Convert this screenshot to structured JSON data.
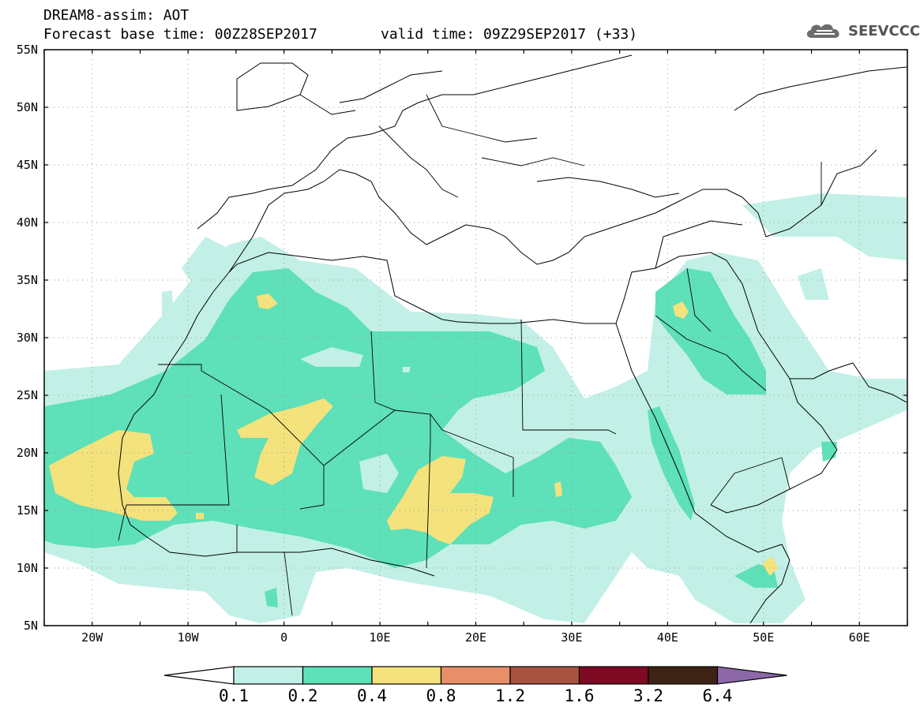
{
  "header": {
    "title": "DREAM8-assim: AOT",
    "base_time": "Forecast base time: 00Z28SEP2017",
    "valid_time": "valid time: 09Z29SEP2017 (+33)",
    "logo_text": "SEEVCCC"
  },
  "map": {
    "projection": "lat-lon",
    "lon_range": [
      -25,
      65
    ],
    "lat_range": [
      5,
      55
    ],
    "lat_labels": [
      "55N",
      "50N",
      "45N",
      "40N",
      "35N",
      "30N",
      "25N",
      "20N",
      "15N",
      "10N",
      "5N"
    ],
    "lon_labels": [
      "20W",
      "10W",
      "0",
      "10E",
      "20E",
      "30E",
      "40E",
      "50E",
      "60E"
    ],
    "grid": "dotted"
  },
  "colorbar": {
    "labels": [
      "0.1",
      "0.2",
      "0.4",
      "0.8",
      "1.2",
      "1.6",
      "3.2",
      "6.4"
    ],
    "colors": [
      "#ffffff",
      "#c2f0e6",
      "#5ee0b9",
      "#f4e27c",
      "#e78f69",
      "#a85340",
      "#7e0a24",
      "#3d2314",
      "#8c68a8"
    ]
  }
}
